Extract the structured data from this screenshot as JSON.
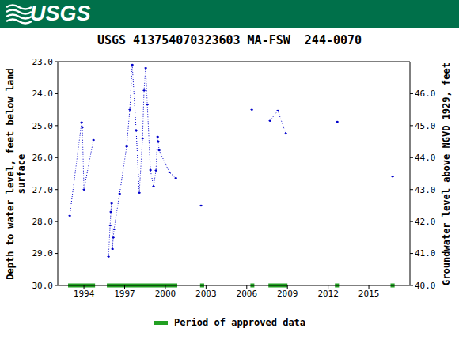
{
  "header": {
    "logo": "USGS"
  },
  "chart_data": {
    "type": "line",
    "title": "USGS 413754070323603 MA-FSW  244-0070",
    "y_label": "Depth to water level, feet below land surface",
    "y2_label": "Groundwater level above NGVD 1929, feet",
    "x": [
      1992.95,
      1993.83,
      1993.88,
      1994.0,
      1994.7,
      null,
      1995.81,
      1995.93,
      1995.98,
      1996.04,
      1996.1,
      1996.16,
      1996.22,
      1996.63,
      1997.15,
      1997.38,
      1997.56,
      1997.85,
      1998.08,
      1998.32,
      1998.43,
      1998.55,
      1998.67,
      1998.9,
      1999.13,
      1999.31,
      1999.43,
      1999.48,
      1999.54,
      2000.3,
      2000.77,
      null,
      2002.63,
      null,
      2006.37,
      null,
      2007.71,
      2008.29,
      2008.88,
      null,
      2012.67,
      null,
      2016.75
    ],
    "series": [
      {
        "color": "#0000cc",
        "marker": "dot",
        "line_style": "dotted",
        "values": [
          27.82,
          24.9,
          25.05,
          27.0,
          25.45,
          null,
          29.1,
          28.12,
          27.7,
          27.43,
          28.86,
          28.5,
          28.24,
          27.13,
          25.65,
          24.5,
          23.1,
          25.15,
          27.1,
          25.4,
          23.9,
          23.2,
          24.34,
          26.39,
          26.9,
          26.4,
          25.35,
          25.5,
          25.77,
          26.46,
          26.64,
          null,
          27.5,
          null,
          24.5,
          null,
          24.85,
          24.53,
          25.25,
          null,
          24.88,
          null,
          26.59
        ]
      }
    ],
    "approved_periods": {
      "name": "Period of approved data",
      "color": "#22a022",
      "periods": [
        [
          1992.83,
          1994.82
        ],
        [
          1995.69,
          2000.88
        ],
        [
          2002.56,
          2002.86
        ],
        [
          2006.27,
          2006.56
        ],
        [
          2007.6,
          2009.0
        ],
        [
          2012.5,
          2012.8
        ],
        [
          2016.6,
          2016.9
        ]
      ]
    },
    "xlim": [
      1992.07,
      2018.03
    ],
    "xticks": [
      1994,
      1997,
      2000,
      2003,
      2006,
      2009,
      2012,
      2015
    ],
    "ylim": [
      30,
      23
    ],
    "yticks": [
      {
        "value": 23,
        "label": "23.0"
      },
      {
        "value": 24,
        "label": "24.0"
      },
      {
        "value": 25,
        "label": "25.0"
      },
      {
        "value": 26,
        "label": "26.0"
      },
      {
        "value": 27,
        "label": "27.0"
      },
      {
        "value": 28,
        "label": "28.0"
      },
      {
        "value": 29,
        "label": "29.0"
      },
      {
        "value": 30,
        "label": "30.0"
      }
    ],
    "y2lim": [
      40,
      47
    ],
    "y2ticks": [
      {
        "value": 40,
        "label": "40.0"
      },
      {
        "value": 41,
        "label": "41.0"
      },
      {
        "value": 42,
        "label": "42.0"
      },
      {
        "value": 43,
        "label": "43.0"
      },
      {
        "value": 44,
        "label": "44.0"
      },
      {
        "value": 45,
        "label": "45.0"
      },
      {
        "value": 46,
        "label": "46.0"
      }
    ],
    "grid": false,
    "legend": "bottom"
  }
}
